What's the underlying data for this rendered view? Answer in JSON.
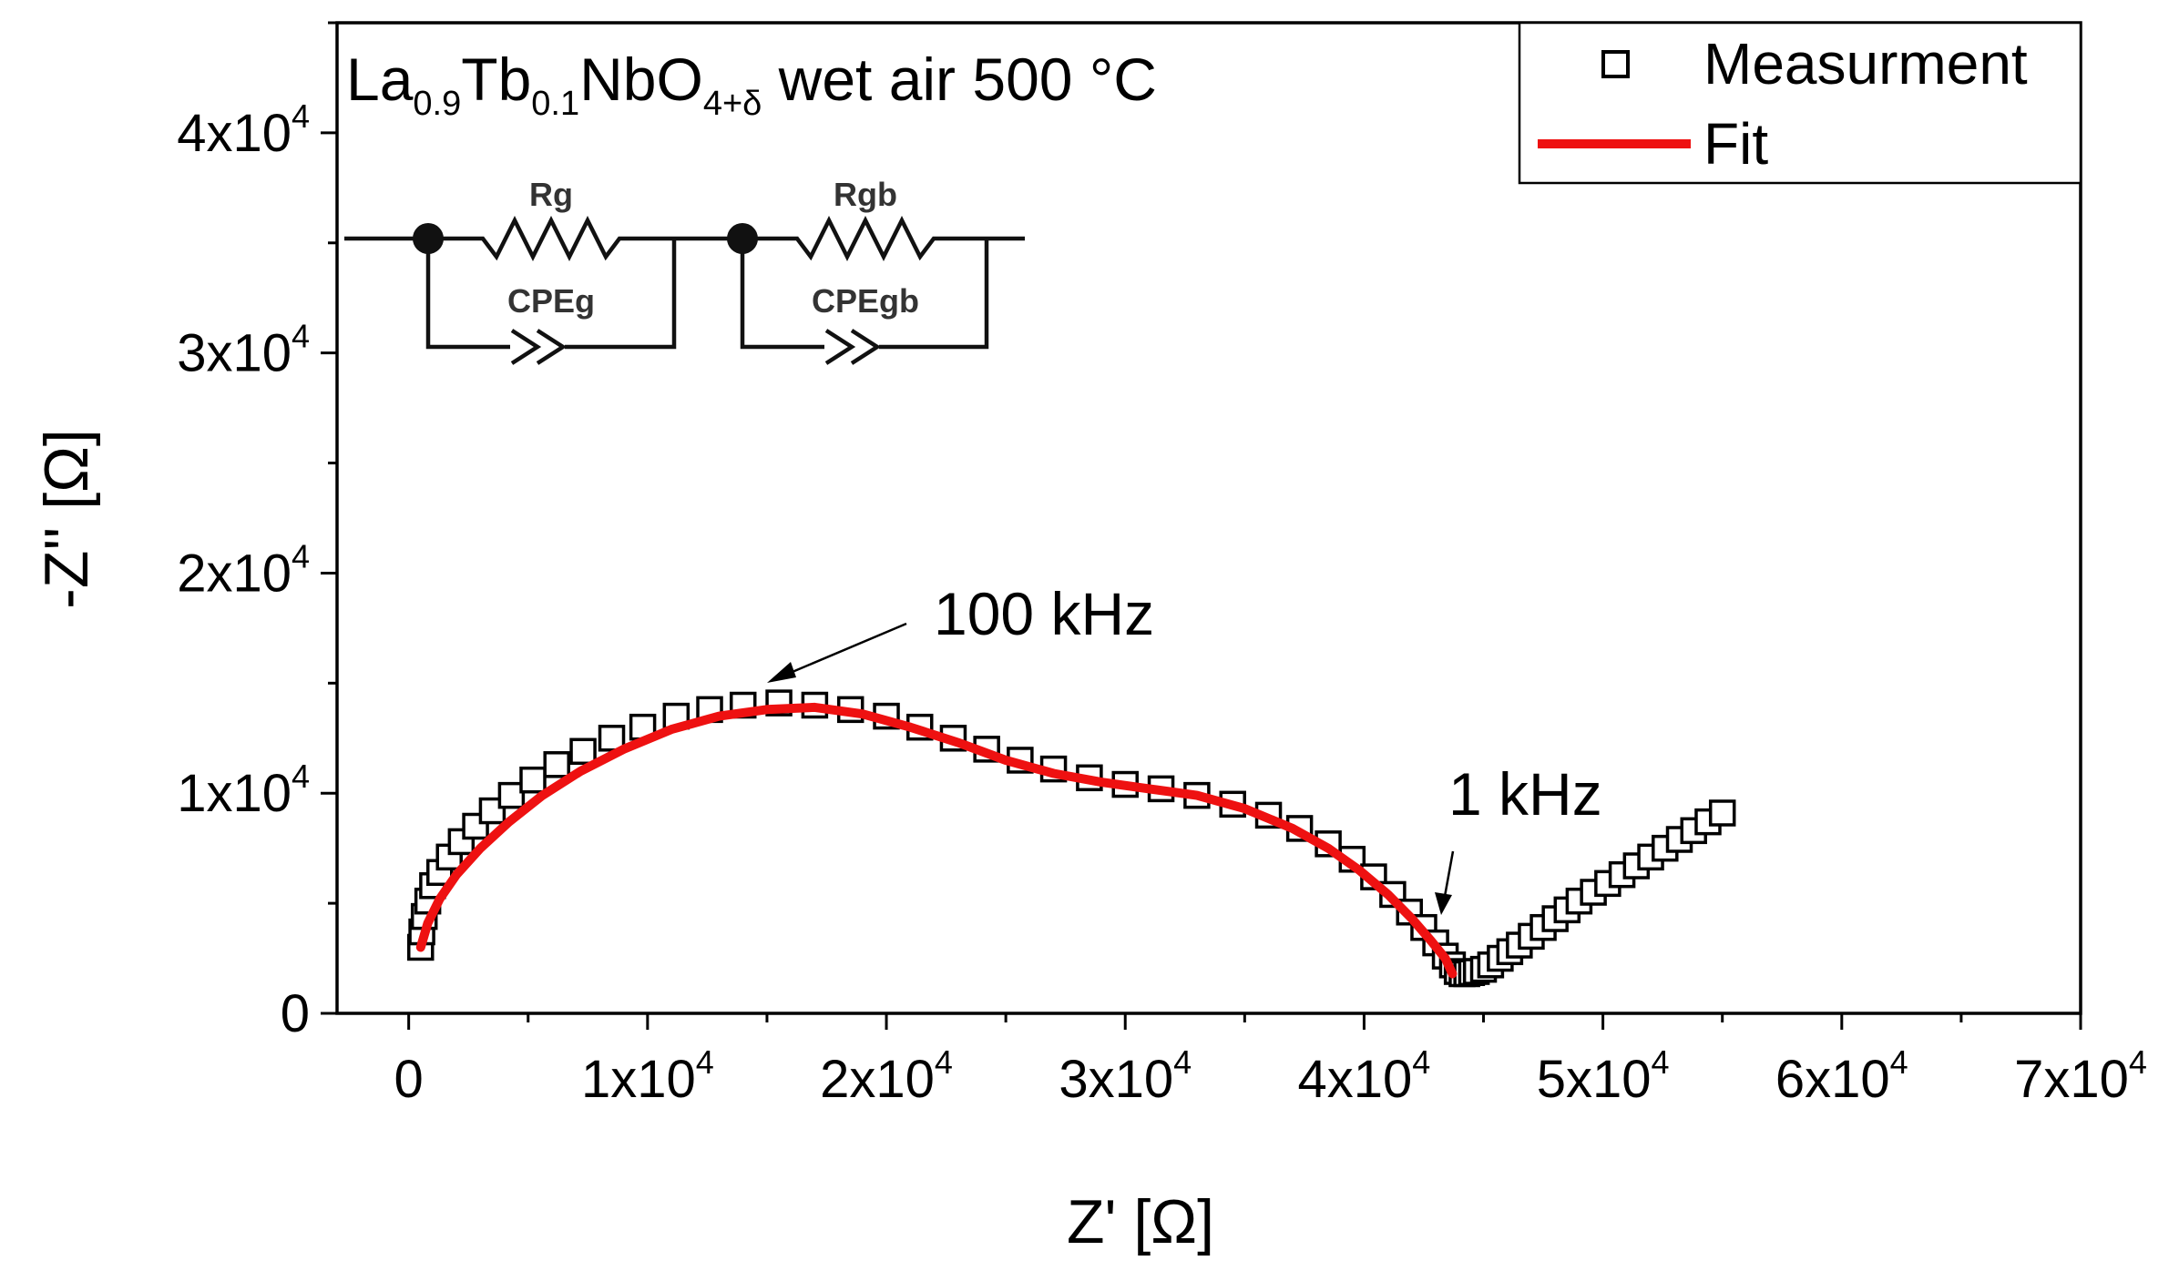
{
  "chart_data": {
    "type": "scatter",
    "title": {
      "parts": [
        {
          "text": "La",
          "sub": false
        },
        {
          "text": "0.9",
          "sub": true
        },
        {
          "text": "Tb",
          "sub": false
        },
        {
          "text": "0.1",
          "sub": true
        },
        {
          "text": "NbO",
          "sub": false
        },
        {
          "text": "4+δ",
          "sub": true
        },
        {
          "text": " wet air 500 °C",
          "sub": false
        }
      ]
    },
    "xlabel": "Z' [Ω]",
    "ylabel": "-Z'' [Ω]",
    "xlim": [
      -3000,
      70000
    ],
    "ylim": [
      0,
      45000
    ],
    "x_ticks": [
      {
        "value": 0,
        "label": "0"
      },
      {
        "value": 10000,
        "label": "1x10",
        "exp": "4"
      },
      {
        "value": 20000,
        "label": "2x10",
        "exp": "4"
      },
      {
        "value": 30000,
        "label": "3x10",
        "exp": "4"
      },
      {
        "value": 40000,
        "label": "4x10",
        "exp": "4"
      },
      {
        "value": 50000,
        "label": "5x10",
        "exp": "4"
      },
      {
        "value": 60000,
        "label": "6x10",
        "exp": "4"
      },
      {
        "value": 70000,
        "label": "7x10",
        "exp": "4"
      }
    ],
    "y_ticks": [
      {
        "value": 0,
        "label": "0"
      },
      {
        "value": 10000,
        "label": "1x10",
        "exp": "4"
      },
      {
        "value": 20000,
        "label": "2x10",
        "exp": "4"
      },
      {
        "value": 30000,
        "label": "3x10",
        "exp": "4"
      },
      {
        "value": 40000,
        "label": "4x10",
        "exp": "4"
      }
    ],
    "legend": {
      "position": "top-right",
      "entries": [
        {
          "label": "Measurment",
          "marker": "open-square",
          "color": "#000000"
        },
        {
          "label": "Fit",
          "marker": "line",
          "color": "#ee1111"
        }
      ]
    },
    "annotations": [
      {
        "text": "100 kHz",
        "x": 15000,
        "y": 14300
      },
      {
        "text": "1 kHz",
        "x": 43800,
        "y": 3300
      }
    ],
    "circuit_labels": [
      "Rg",
      "CPEg",
      "Rgb",
      "CPEgb"
    ],
    "series": [
      {
        "name": "Measurment",
        "marker": "open-square",
        "color": "#000000",
        "points": [
          [
            500,
            3000
          ],
          [
            550,
            3700
          ],
          [
            650,
            4400
          ],
          [
            800,
            5100
          ],
          [
            1000,
            5800
          ],
          [
            1300,
            6400
          ],
          [
            1700,
            7100
          ],
          [
            2200,
            7800
          ],
          [
            2800,
            8500
          ],
          [
            3500,
            9200
          ],
          [
            4300,
            9900
          ],
          [
            5200,
            10600
          ],
          [
            6200,
            11300
          ],
          [
            7300,
            11900
          ],
          [
            8500,
            12500
          ],
          [
            9800,
            13000
          ],
          [
            11200,
            13500
          ],
          [
            12600,
            13800
          ],
          [
            14000,
            14000
          ],
          [
            15500,
            14100
          ],
          [
            17000,
            14000
          ],
          [
            18500,
            13800
          ],
          [
            20000,
            13500
          ],
          [
            21400,
            13000
          ],
          [
            22800,
            12500
          ],
          [
            24200,
            12000
          ],
          [
            25600,
            11500
          ],
          [
            27000,
            11100
          ],
          [
            28500,
            10700
          ],
          [
            30000,
            10400
          ],
          [
            31500,
            10200
          ],
          [
            33000,
            9900
          ],
          [
            34500,
            9500
          ],
          [
            36000,
            9000
          ],
          [
            37300,
            8400
          ],
          [
            38500,
            7700
          ],
          [
            39500,
            7000
          ],
          [
            40400,
            6200
          ],
          [
            41200,
            5400
          ],
          [
            41900,
            4600
          ],
          [
            42500,
            3900
          ],
          [
            43000,
            3200
          ],
          [
            43400,
            2600
          ],
          [
            43700,
            2200
          ],
          [
            43900,
            1900
          ],
          [
            44100,
            1800
          ],
          [
            44300,
            1800
          ],
          [
            44500,
            1850
          ],
          [
            44700,
            1900
          ],
          [
            45000,
            2000
          ],
          [
            45300,
            2200
          ],
          [
            45700,
            2500
          ],
          [
            46100,
            2800
          ],
          [
            46500,
            3100
          ],
          [
            47000,
            3500
          ],
          [
            47500,
            3900
          ],
          [
            48000,
            4300
          ],
          [
            48500,
            4700
          ],
          [
            49000,
            5100
          ],
          [
            49600,
            5500
          ],
          [
            50200,
            5900
          ],
          [
            50800,
            6300
          ],
          [
            51400,
            6700
          ],
          [
            52000,
            7100
          ],
          [
            52600,
            7500
          ],
          [
            53200,
            7900
          ],
          [
            53800,
            8300
          ],
          [
            54400,
            8700
          ],
          [
            55000,
            9100
          ]
        ]
      },
      {
        "name": "Fit",
        "marker": "line",
        "color": "#ee1111",
        "points": [
          [
            500,
            3000
          ],
          [
            800,
            4100
          ],
          [
            1300,
            5200
          ],
          [
            2000,
            6300
          ],
          [
            3000,
            7500
          ],
          [
            4200,
            8700
          ],
          [
            5600,
            9900
          ],
          [
            7200,
            11000
          ],
          [
            9000,
            12000
          ],
          [
            11000,
            12900
          ],
          [
            13000,
            13500
          ],
          [
            15000,
            13800
          ],
          [
            17000,
            13900
          ],
          [
            19000,
            13600
          ],
          [
            21000,
            13000
          ],
          [
            23000,
            12300
          ],
          [
            25000,
            11500
          ],
          [
            27000,
            10900
          ],
          [
            29000,
            10500
          ],
          [
            31000,
            10200
          ],
          [
            33000,
            9900
          ],
          [
            35000,
            9300
          ],
          [
            37000,
            8400
          ],
          [
            38500,
            7500
          ],
          [
            39800,
            6500
          ],
          [
            41000,
            5400
          ],
          [
            42000,
            4300
          ],
          [
            42800,
            3300
          ],
          [
            43400,
            2500
          ],
          [
            43700,
            1800
          ]
        ]
      }
    ]
  }
}
